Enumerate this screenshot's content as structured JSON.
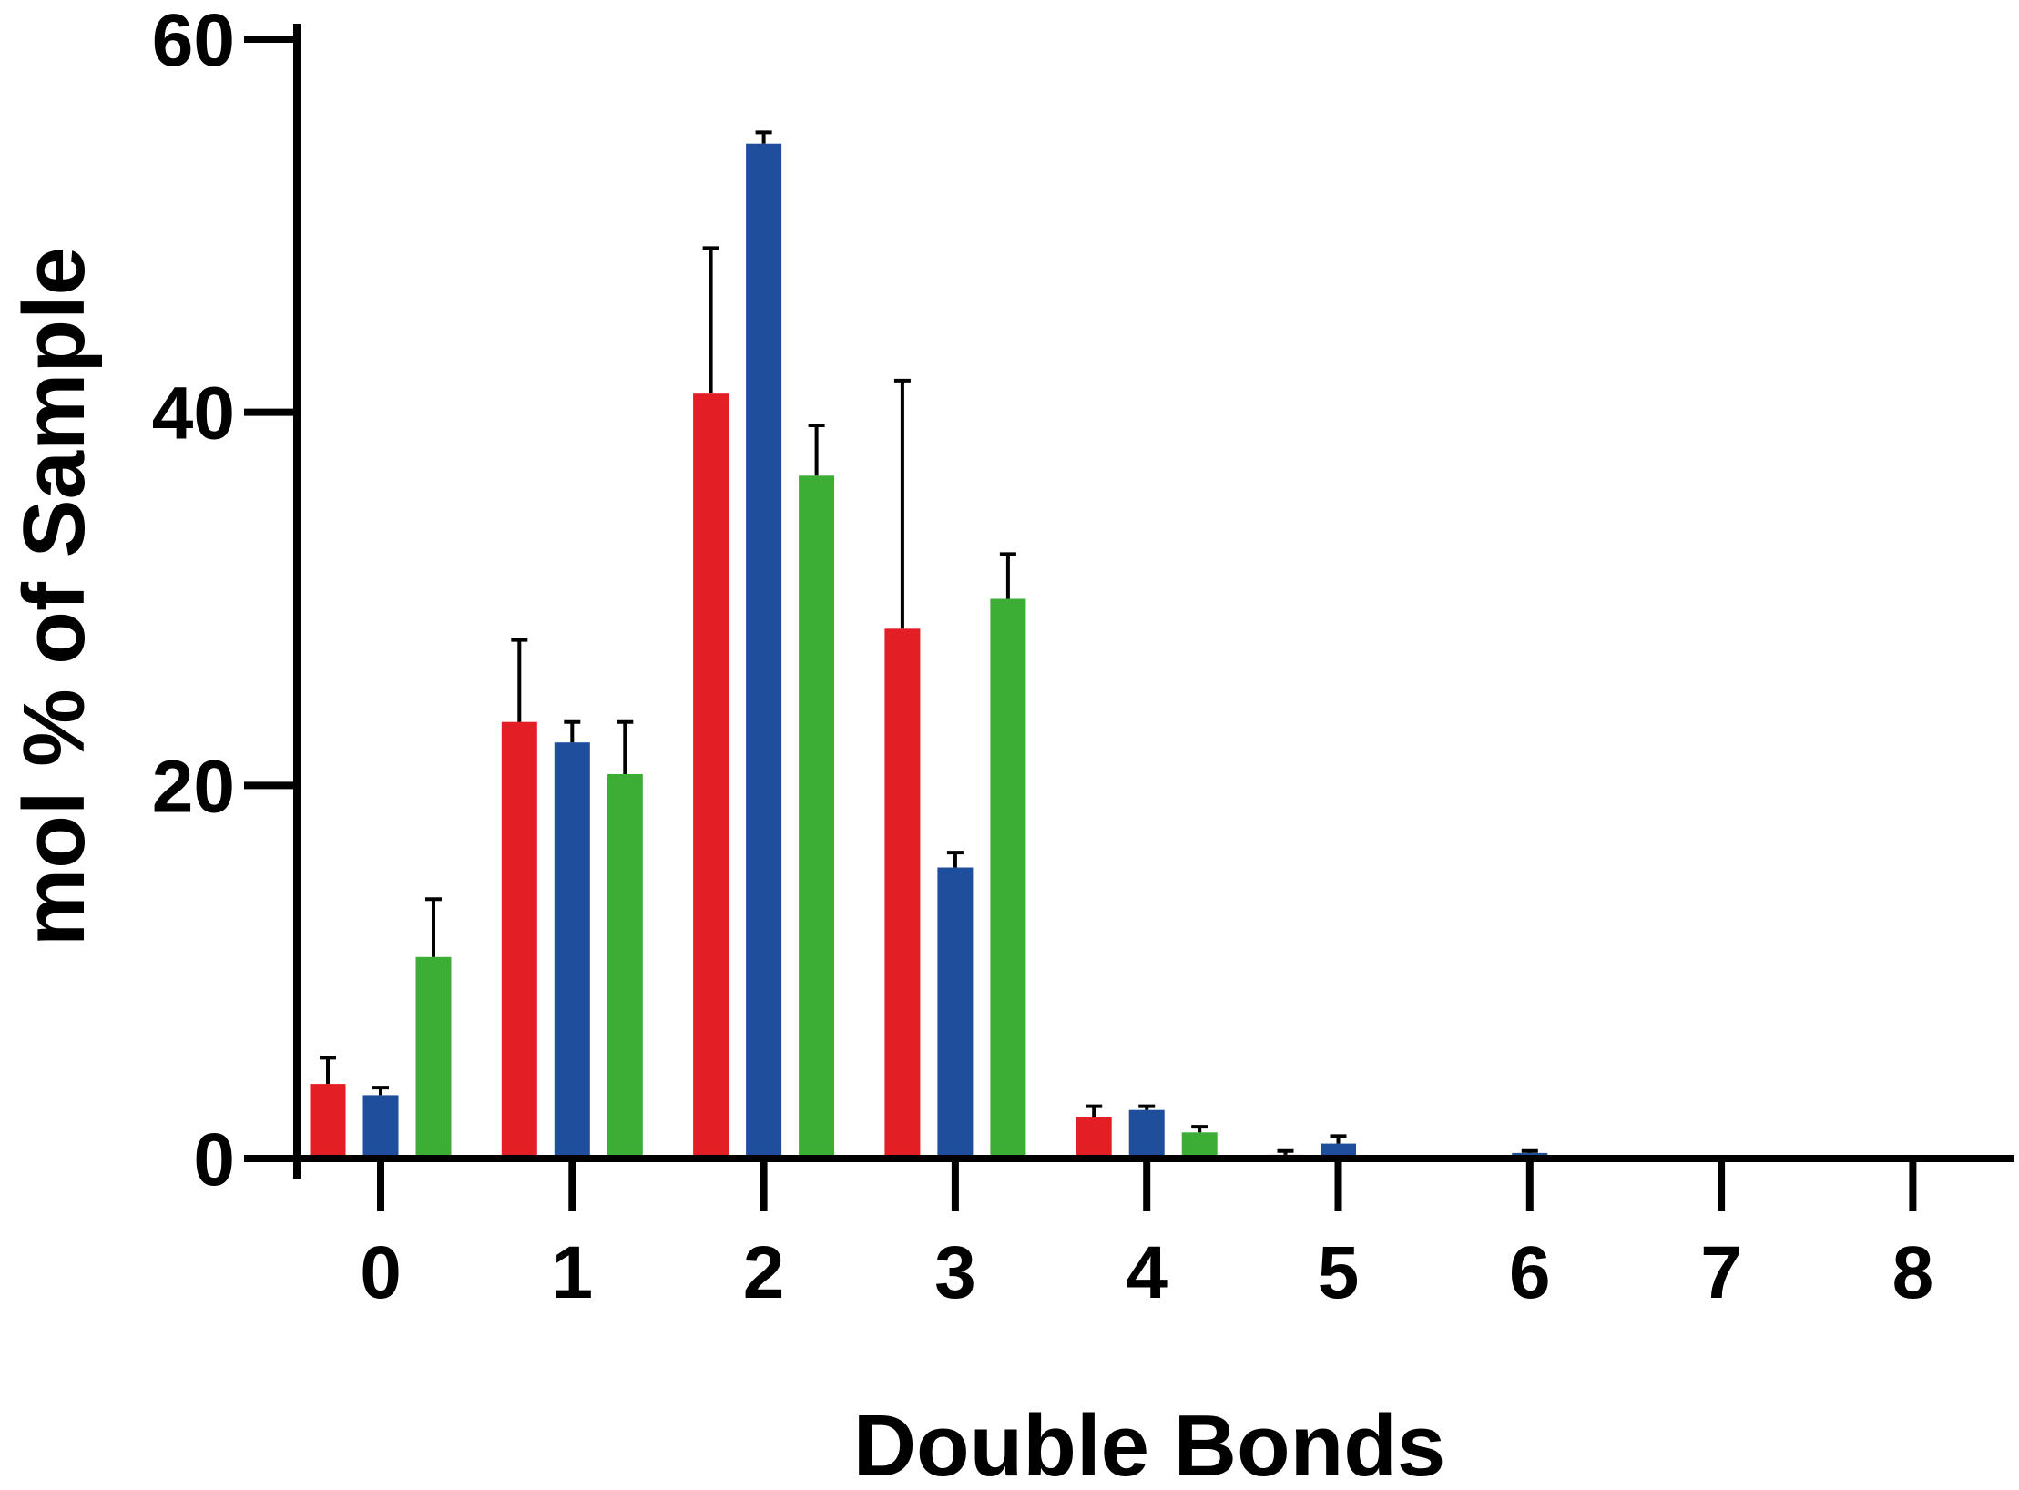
{
  "chart_data": {
    "type": "bar",
    "title": "",
    "xlabel": "Double Bonds",
    "ylabel": "mol % of Sample",
    "categories": [
      "0",
      "1",
      "2",
      "3",
      "4",
      "5",
      "6",
      "7",
      "8"
    ],
    "ylim": [
      0,
      60
    ],
    "yticks": [
      0,
      20,
      40,
      60
    ],
    "grid": false,
    "legend": "none",
    "series": [
      {
        "color": "#e31e24",
        "values": [
          4.0,
          23.4,
          41.0,
          28.4,
          2.2,
          0.2,
          0.1,
          0,
          0
        ],
        "errors": [
          1.4,
          4.4,
          7.8,
          13.3,
          0.6,
          0.2,
          0,
          0,
          0
        ]
      },
      {
        "color": "#1f4e9c",
        "values": [
          3.4,
          22.3,
          54.4,
          15.6,
          2.6,
          0.8,
          0.3,
          0,
          0
        ],
        "errors": [
          0.4,
          1.1,
          0.6,
          0.8,
          0.2,
          0.4,
          0.1,
          0,
          0
        ]
      },
      {
        "color": "#3dae35",
        "values": [
          10.8,
          20.6,
          36.6,
          30.0,
          1.4,
          0.1,
          0,
          0,
          0
        ],
        "errors": [
          3.1,
          2.8,
          2.7,
          2.4,
          0.3,
          0,
          0,
          0,
          0
        ]
      }
    ]
  }
}
